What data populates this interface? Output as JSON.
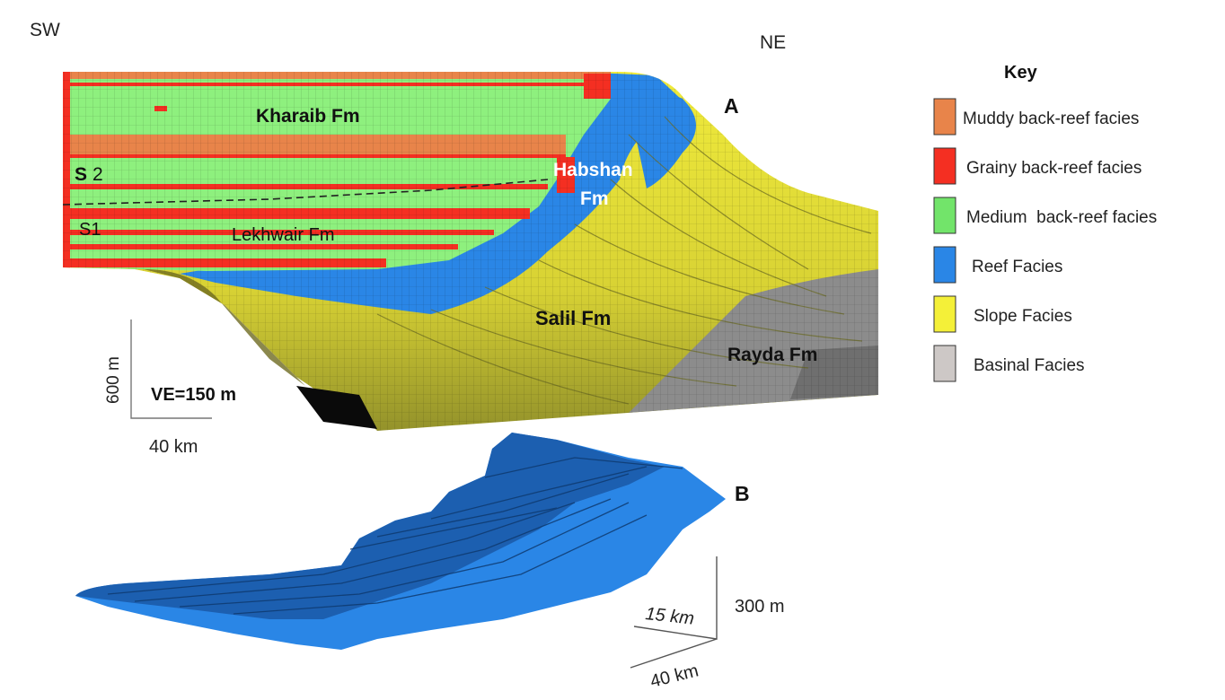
{
  "orientation": {
    "left": "SW",
    "right": "NE"
  },
  "panels": {
    "a": "A",
    "b": "B"
  },
  "formations": {
    "kharaib": "Kharaib Fm",
    "habshan_1": "Habshan",
    "habshan_2": "Fm",
    "lekhwair": "Lekhwair Fm",
    "salil": "Salil Fm",
    "rayda": "Rayda Fm"
  },
  "sequences": {
    "s2_bold": "S",
    "s2_num": "2",
    "s1": "S1"
  },
  "scale_a": {
    "vertical": "600 m",
    "horizontal": "40 km",
    "ve": "VE=150 m"
  },
  "scale_b": {
    "depth": "15 km",
    "vertical": "300 m",
    "horizontal": "40 km"
  },
  "key": {
    "title": "Key",
    "items": [
      {
        "label": "Muddy back-reef facies",
        "color": "#e8844a"
      },
      {
        "label": "Grainy back-reef facies",
        "color": "#f42f22"
      },
      {
        "label": "Medium  back-reef facies",
        "color": "#72e46a"
      },
      {
        "label": "Reef Facies",
        "color": "#2a86e6"
      },
      {
        "label": "Slope Facies",
        "color": "#f4f038"
      },
      {
        "label": "Basinal Facies",
        "color": "#cdc8c6"
      }
    ]
  },
  "colors": {
    "muddy": "#e8844a",
    "grainy": "#f42f22",
    "medium": "#8ef07e",
    "reef": "#2a86e6",
    "slope": "#ece63a",
    "slope_dark": "#9c9a2c",
    "basinal": "#8c8c8c",
    "reef_dark": "#1c5fb0"
  }
}
